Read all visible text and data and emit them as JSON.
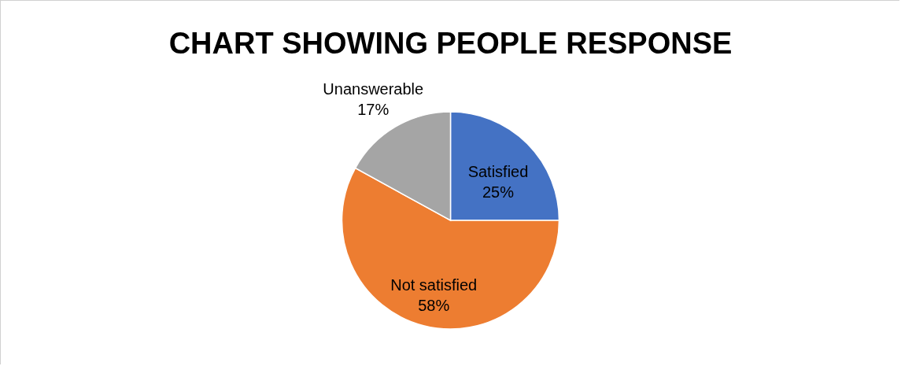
{
  "chart_data": {
    "type": "pie",
    "title": "CHART SHOWING PEOPLE  RESPONSE",
    "categories": [
      "Satisfied",
      "Not satisfied",
      "Unanswerable"
    ],
    "values": [
      25,
      58,
      17
    ],
    "colors": [
      "#4472c4",
      "#ed7d31",
      "#a5a5a5"
    ],
    "value_labels": [
      "25%",
      "58%",
      "17%"
    ]
  }
}
